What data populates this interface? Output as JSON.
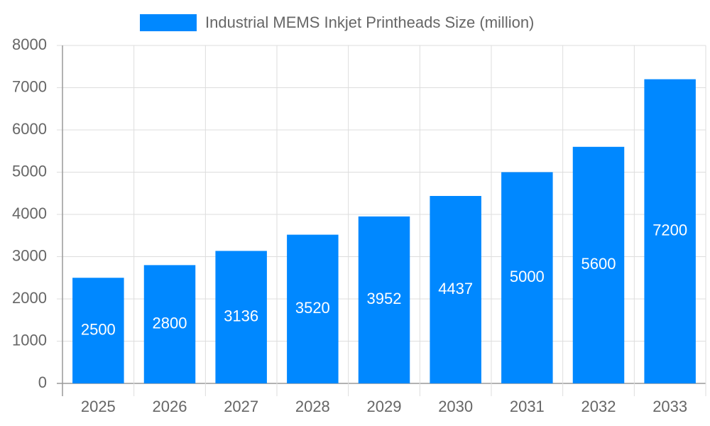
{
  "chart_data": {
    "type": "bar",
    "categories": [
      "2025",
      "2026",
      "2027",
      "2028",
      "2029",
      "2030",
      "2031",
      "2032",
      "2033"
    ],
    "series": [
      {
        "name": "Industrial MEMS Inkjet Printheads Size (million)",
        "color": "#0088ff",
        "values": [
          2500,
          2800,
          3136,
          3520,
          3952,
          4437,
          5000,
          5600,
          7200
        ]
      }
    ],
    "ylim": [
      0,
      8000
    ],
    "yticks": [
      0,
      1000,
      2000,
      3000,
      4000,
      5000,
      6000,
      7000,
      8000
    ],
    "grid": true,
    "data_labels": true,
    "legend": "top"
  }
}
